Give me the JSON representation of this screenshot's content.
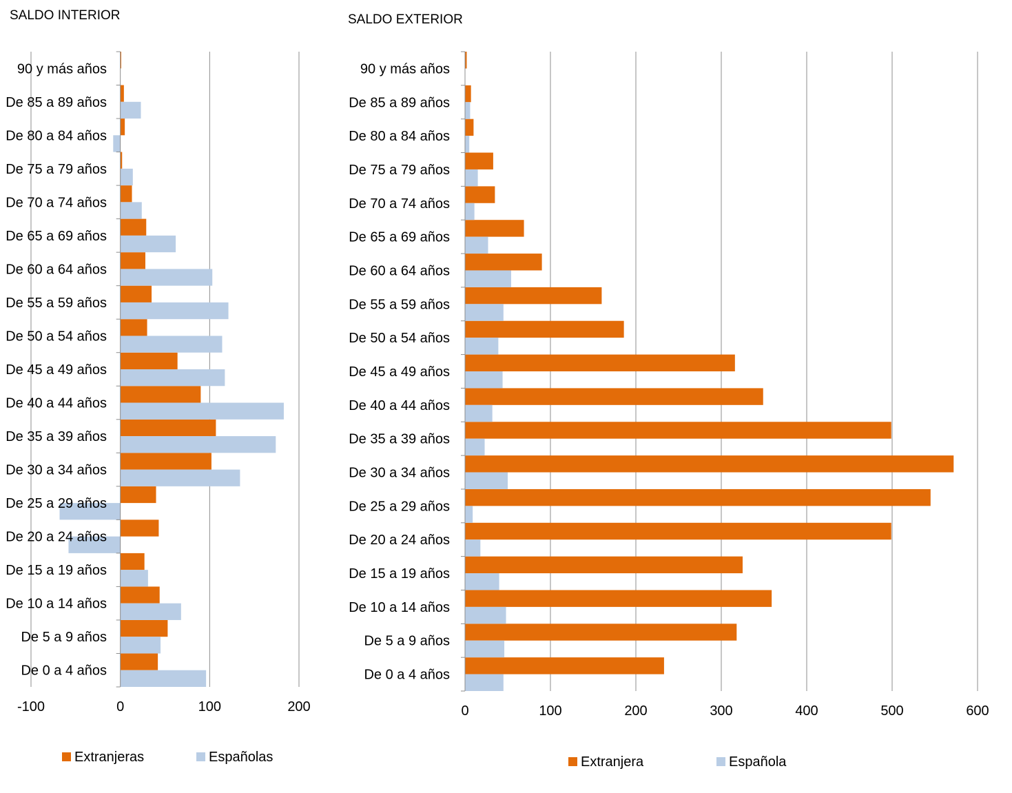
{
  "chart_data": [
    {
      "type": "bar",
      "orientation": "horizontal",
      "title": "SALDO INTERIOR",
      "categories": [
        "De 0 a 4 años",
        "De 5 a 9 años",
        "De 10 a 14 años",
        "De 15 a 19 años",
        "De 20 a 24 años",
        "De 25 a 29 años",
        "De 30 a 34 años",
        "De 35 a 39 años",
        "De 40 a 44 años",
        "De 45 a 49 años",
        "De 50 a 54 años",
        "De 55 a 59 años",
        "De 60 a 64 años",
        "De 65 a 69 años",
        "De 70 a 74 años",
        "De 75 a 79 años",
        "De 80 a 84 años",
        "De 85 a 89 años",
        "90 y más años"
      ],
      "series": [
        {
          "name": "Extranjeras",
          "color": "#E36C09",
          "values": [
            42,
            53,
            44,
            27,
            43,
            40,
            102,
            107,
            90,
            64,
            30,
            35,
            28,
            29,
            13,
            2,
            5,
            4,
            1
          ]
        },
        {
          "name": "Españolas",
          "color": "#B9CDE5",
          "values": [
            96,
            45,
            68,
            31,
            -58,
            -68,
            134,
            174,
            183,
            117,
            114,
            121,
            103,
            62,
            24,
            14,
            -8,
            23,
            0
          ]
        }
      ],
      "xlim": [
        -100,
        200
      ],
      "ticks": [
        -100,
        0,
        100,
        200
      ],
      "tick_labels": [
        "-100",
        "0",
        "100",
        "200"
      ],
      "grid": true,
      "legend": "bottom"
    },
    {
      "type": "bar",
      "orientation": "horizontal",
      "title": "SALDO EXTERIOR",
      "categories": [
        "De 0 a 4 años",
        "De 5 a 9 años",
        "De 10 a 14 años",
        "De 15 a 19 años",
        "De 20 a 24 años",
        "De 25 a 29 años",
        "De 30 a 34 años",
        "De 35 a 39 años",
        "De 40 a 44 años",
        "De 45 a 49 años",
        "De 50 a 54 años",
        "De 55 a 59 años",
        "De 60 a 64 años",
        "De 65 a 69 años",
        "De 70 a 74 años",
        "De 75 a 79 años",
        "De 80 a 84 años",
        "De 85 a 89 años",
        "90 y más años"
      ],
      "series": [
        {
          "name": "Extranjera",
          "color": "#E36C09",
          "values": [
            233,
            318,
            359,
            325,
            499,
            545,
            572,
            499,
            349,
            316,
            186,
            160,
            90,
            69,
            35,
            33,
            10,
            7,
            2
          ]
        },
        {
          "name": "Española",
          "color": "#B9CDE5",
          "values": [
            45,
            46,
            48,
            40,
            18,
            9,
            50,
            23,
            32,
            44,
            39,
            45,
            54,
            27,
            11,
            15,
            5,
            6,
            0
          ]
        }
      ],
      "xlim": [
        0,
        600
      ],
      "ticks": [
        0,
        100,
        200,
        300,
        400,
        500,
        600
      ],
      "tick_labels": [
        "0",
        "100",
        "200",
        "300",
        "400",
        "500",
        "600"
      ],
      "grid": true,
      "legend": "bottom"
    }
  ]
}
